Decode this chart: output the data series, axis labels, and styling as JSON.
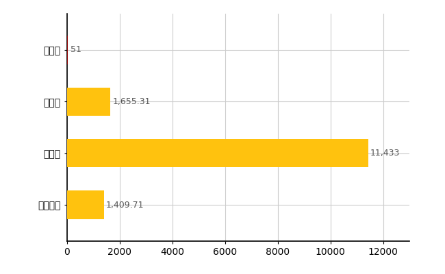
{
  "categories": [
    "全国平均",
    "県最大",
    "県平均",
    "河津町"
  ],
  "values": [
    1409.71,
    11433,
    1655.31,
    51
  ],
  "bar_colors": [
    "#FFC20E",
    "#FFC20E",
    "#FFC20E",
    "#8B0000"
  ],
  "value_labels": [
    "1,409.71",
    "11,433",
    "1,655.31",
    "51"
  ],
  "xlim": [
    0,
    13000
  ],
  "xticks": [
    0,
    2000,
    4000,
    6000,
    8000,
    10000,
    12000
  ],
  "grid_color": "#CCCCCC",
  "background_color": "#FFFFFF",
  "bar_height": 0.55,
  "label_fontsize": 10,
  "tick_fontsize": 10,
  "value_label_fontsize": 9
}
